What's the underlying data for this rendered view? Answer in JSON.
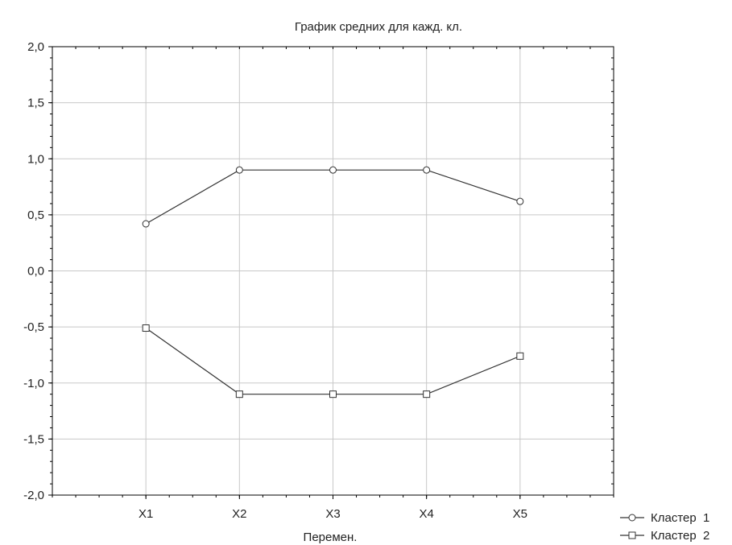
{
  "chart_data": {
    "type": "line",
    "title": "График средних для кажд. кл.",
    "xlabel": "Перемен.",
    "ylabel": "",
    "categories": [
      "X1",
      "X2",
      "X3",
      "X4",
      "X5"
    ],
    "ylim": [
      -2.0,
      2.0
    ],
    "yticks": [
      "2,0",
      "1,5",
      "1,0",
      "0,5",
      "0,0",
      "-0,5",
      "-1,0",
      "-1,5",
      "-2,0"
    ],
    "grid": true,
    "legend_position": "bottom-right",
    "series": [
      {
        "name": "Кластер  1",
        "marker": "circle",
        "values": [
          0.42,
          0.9,
          0.9,
          0.9,
          0.62
        ]
      },
      {
        "name": "Кластер  2",
        "marker": "square",
        "values": [
          -0.51,
          -1.1,
          -1.1,
          -1.1,
          -0.76
        ]
      }
    ],
    "colors": {
      "line": "#333333",
      "grid": "#c8c8c8",
      "frame": "#000000"
    }
  }
}
